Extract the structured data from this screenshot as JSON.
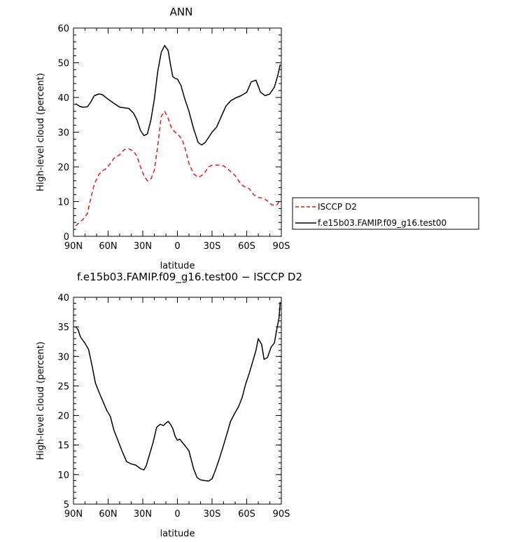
{
  "chart_data": [
    {
      "type": "line",
      "title": "ANN",
      "xlabel": "latitude",
      "ylabel": "High-level cloud (percent)",
      "xlim": [
        -90,
        90
      ],
      "ylim": [
        0,
        60
      ],
      "x_tick_values": [
        -90,
        -60,
        -30,
        0,
        30,
        60,
        90
      ],
      "x_tick_labels": [
        "90N",
        "60N",
        "30N",
        "0",
        "30S",
        "60S",
        "90S"
      ],
      "y_tick_values": [
        0,
        10,
        20,
        30,
        40,
        50,
        60
      ],
      "y_tick_labels": [
        "0",
        "10",
        "20",
        "30",
        "40",
        "50",
        "60"
      ],
      "legend_position": "right",
      "series": [
        {
          "name": "ISCCP D2",
          "color": "#e41a1c",
          "dash": "dashed",
          "x": [
            -88,
            -85,
            -82,
            -78,
            -75,
            -72,
            -68,
            -65,
            -62,
            -58,
            -55,
            -50,
            -46,
            -42,
            -38,
            -35,
            -32,
            -29,
            -26,
            -23,
            -20,
            -17,
            -14,
            -11,
            -8,
            -5,
            -2,
            0,
            4,
            7,
            10,
            14,
            18,
            21,
            24,
            27,
            30,
            33,
            36,
            40,
            45,
            50,
            55,
            58,
            62,
            66,
            70,
            74,
            78,
            82,
            86,
            89
          ],
          "y": [
            3,
            4,
            4.8,
            6.5,
            11,
            15,
            17.8,
            18.8,
            19.5,
            21,
            22.5,
            23.5,
            25,
            25.2,
            24.5,
            23,
            20,
            17.5,
            16,
            16.5,
            19,
            26,
            34.5,
            36,
            34,
            31,
            30,
            29.5,
            28,
            25,
            21,
            18,
            17,
            17.5,
            18.5,
            20,
            20.5,
            20.5,
            20.5,
            20.3,
            19,
            17.5,
            15,
            14.3,
            13.8,
            12,
            11.2,
            11,
            10.2,
            9,
            9,
            10.5
          ]
        },
        {
          "name": "f.e15b03.FAMIP.f09_g16.test00",
          "color": "#000000",
          "dash": "solid",
          "x": [
            -88,
            -85,
            -82,
            -78,
            -75,
            -72,
            -68,
            -65,
            -62,
            -58,
            -55,
            -50,
            -46,
            -42,
            -38,
            -35,
            -32,
            -29,
            -26,
            -23,
            -20,
            -17,
            -14,
            -11,
            -8,
            -6,
            -4,
            -2,
            0,
            3,
            6,
            10,
            14,
            18,
            21,
            24,
            27,
            30,
            34,
            38,
            42,
            46,
            50,
            55,
            60,
            64,
            68,
            72,
            76,
            80,
            84,
            87,
            89
          ],
          "y": [
            38.2,
            37.5,
            37.2,
            37.3,
            38.7,
            40.5,
            41,
            40.8,
            40,
            39,
            38.3,
            37.2,
            37,
            36.8,
            35.5,
            33.5,
            30.5,
            29,
            29.5,
            33.5,
            39.5,
            47.5,
            53,
            55,
            53.5,
            49.5,
            46,
            45.5,
            45.3,
            43.5,
            40,
            36,
            31,
            27,
            26.3,
            27,
            28.5,
            30,
            31.5,
            34.5,
            37.5,
            39,
            39.8,
            40.5,
            41.5,
            44.5,
            45,
            41.5,
            40.5,
            41,
            43,
            46.5,
            49.5
          ]
        }
      ]
    },
    {
      "type": "line",
      "title": "f.e15b03.FAMIP.f09_g16.test00 − ISCCP D2",
      "xlabel": "latitude",
      "ylabel": "High-level cloud (percent)",
      "xlim": [
        -90,
        90
      ],
      "ylim": [
        5,
        40
      ],
      "x_tick_values": [
        -90,
        -60,
        -30,
        0,
        30,
        60,
        90
      ],
      "x_tick_labels": [
        "90N",
        "60N",
        "30N",
        "0",
        "30S",
        "60S",
        "90S"
      ],
      "y_tick_values": [
        5,
        10,
        15,
        20,
        25,
        30,
        35,
        40
      ],
      "y_tick_labels": [
        "5",
        "10",
        "15",
        "20",
        "25",
        "30",
        "35",
        "40"
      ],
      "series": [
        {
          "color": "#000000",
          "dash": "solid",
          "x": [
            -88,
            -86,
            -84,
            -80,
            -77,
            -74,
            -71,
            -68,
            -65,
            -61,
            -58,
            -55,
            -51,
            -48,
            -44,
            -40,
            -36,
            -32,
            -29,
            -27,
            -24,
            -21,
            -18,
            -15,
            -12,
            -10,
            -8,
            -6,
            -4,
            -2,
            0,
            2,
            4,
            7,
            10,
            12,
            14,
            17,
            20,
            23,
            27,
            30,
            33,
            36,
            40,
            43,
            46,
            50,
            53,
            56,
            59,
            62,
            65,
            68,
            70,
            73,
            75,
            78,
            81,
            84,
            86,
            88,
            89
          ],
          "y": [
            35,
            34.5,
            33.3,
            32.2,
            31.2,
            28.5,
            25.5,
            24,
            22.6,
            20.8,
            19.8,
            17.5,
            15.5,
            14,
            12.2,
            11.8,
            11.6,
            11,
            10.8,
            11.5,
            13.5,
            15.5,
            18,
            18.5,
            18.3,
            18.7,
            19,
            18.5,
            17.8,
            16.5,
            15.8,
            16,
            15.5,
            14.8,
            14,
            12.5,
            11,
            9.5,
            9.1,
            9,
            8.9,
            9.3,
            10.8,
            12.5,
            15,
            17,
            19,
            20.5,
            21.5,
            23,
            25.3,
            27,
            29,
            31,
            33,
            32,
            29.5,
            29.8,
            31.5,
            32.3,
            34.5,
            36.5,
            39.2
          ]
        }
      ]
    }
  ]
}
